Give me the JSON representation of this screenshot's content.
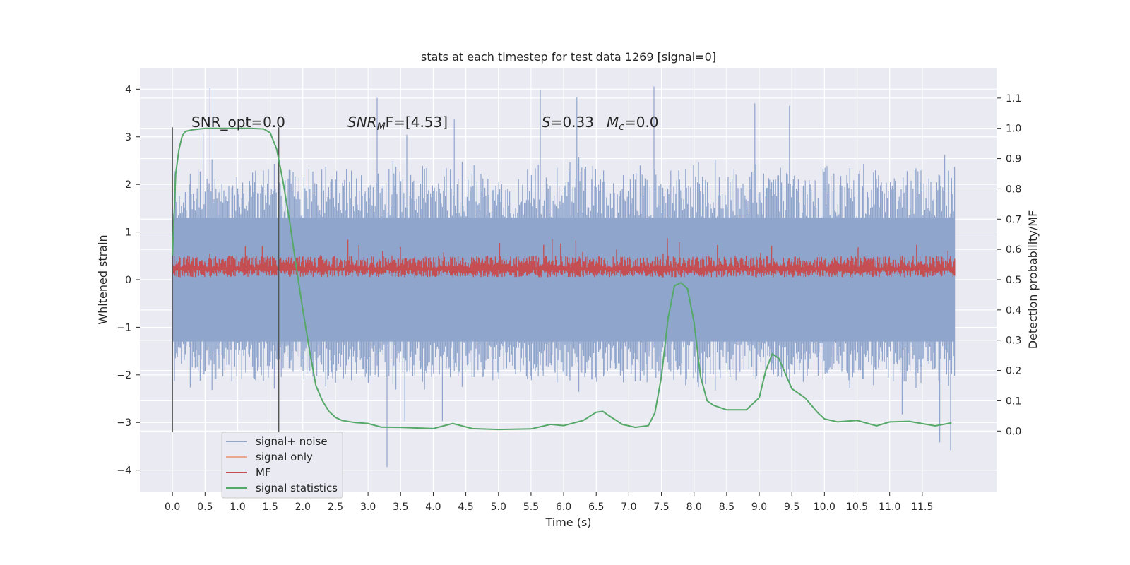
{
  "chart_data": {
    "type": "line",
    "title": "stats at each timestep for test data 1269 [signal=0]",
    "xlabel": "Time (s)",
    "ylabel": "Whitened strain",
    "ylabel_right": "Detection probability/MF",
    "xlim": [
      -0.5,
      12.65
    ],
    "ylim": [
      -4.45,
      4.45
    ],
    "ylim_right": [
      -0.2,
      1.2
    ],
    "x_ticks": [
      "0.0",
      "0.5",
      "1.0",
      "1.5",
      "2.0",
      "2.5",
      "3.0",
      "3.5",
      "4.0",
      "4.5",
      "5.0",
      "5.5",
      "6.0",
      "6.5",
      "7.0",
      "7.5",
      "8.0",
      "8.5",
      "9.0",
      "9.5",
      "10.0",
      "10.5",
      "11.0",
      "11.5"
    ],
    "y_ticks": [
      4,
      3,
      2,
      1,
      0,
      -1,
      -2,
      -3,
      -4
    ],
    "y_tick_labels": [
      "4",
      "3",
      "2",
      "1",
      "0",
      "−1",
      "−2",
      "−3",
      "−4"
    ],
    "y_ticks_right": [
      "1.1",
      "1.0",
      "0.9",
      "0.8",
      "0.7",
      "0.6",
      "0.5",
      "0.4",
      "0.3",
      "0.2",
      "0.1",
      "0.0"
    ],
    "grid": true,
    "legend": {
      "position": "lower-left",
      "entries": [
        {
          "name": "signal+ noise",
          "color": "#8fa5cc"
        },
        {
          "name": "signal only",
          "color": "#e8a890"
        },
        {
          "name": "MF",
          "color": "#c44e52"
        },
        {
          "name": "signal statistics",
          "color": "#55a868"
        }
      ]
    },
    "annotations": {
      "snr_opt": "SNR_opt=0.0",
      "snr_mf_main": "SNR",
      "snr_mf_sub": "M",
      "snr_mf_rest": "F=[4.53]",
      "s_label": "S",
      "s_value": "=0.33",
      "mc_label": "M",
      "mc_sub": "c",
      "mc_value": "=0.0"
    },
    "vertical_markers": [
      0.0,
      1.63
    ],
    "series": [
      {
        "name": "signal+ noise",
        "axis": "left",
        "color": "#8fa5cc",
        "x_range": [
          0.0,
          12.0
        ],
        "envelope": {
          "upper_typical": 2.6,
          "upper_peak": 4.1,
          "lower_typical": -2.4,
          "lower_peak": -4.0
        }
      },
      {
        "name": "signal only",
        "axis": "left",
        "color": "#e8a890",
        "values": []
      },
      {
        "name": "MF",
        "axis": "left",
        "color": "#c44e52",
        "x_range": [
          0.0,
          12.0
        ],
        "envelope": {
          "lower": 0.05,
          "upper_typical": 0.5,
          "upper_peak": 1.0
        }
      },
      {
        "name": "signal statistics",
        "axis": "right",
        "color": "#55a868",
        "x": [
          0.0,
          0.05,
          0.1,
          0.15,
          0.2,
          0.3,
          0.5,
          0.8,
          1.0,
          1.2,
          1.4,
          1.5,
          1.6,
          1.7,
          1.8,
          1.9,
          2.0,
          2.1,
          2.2,
          2.3,
          2.4,
          2.5,
          2.6,
          2.8,
          3.0,
          3.2,
          3.5,
          4.0,
          4.3,
          4.6,
          5.0,
          5.5,
          5.8,
          6.0,
          6.3,
          6.5,
          6.6,
          6.7,
          6.9,
          7.1,
          7.3,
          7.4,
          7.5,
          7.6,
          7.7,
          7.8,
          7.9,
          8.0,
          8.1,
          8.2,
          8.3,
          8.5,
          8.8,
          9.0,
          9.1,
          9.2,
          9.3,
          9.5,
          9.7,
          9.9,
          10.0,
          10.2,
          10.5,
          10.8,
          11.0,
          11.3,
          11.7,
          11.95
        ],
        "values": [
          0.58,
          0.85,
          0.93,
          0.975,
          0.99,
          0.995,
          1.0,
          1.0,
          1.0,
          1.0,
          0.998,
          0.985,
          0.93,
          0.82,
          0.69,
          0.54,
          0.4,
          0.27,
          0.15,
          0.1,
          0.065,
          0.045,
          0.035,
          0.028,
          0.025,
          0.013,
          0.012,
          0.008,
          0.025,
          0.008,
          0.005,
          0.007,
          0.022,
          0.018,
          0.035,
          0.062,
          0.065,
          0.05,
          0.022,
          0.012,
          0.018,
          0.06,
          0.18,
          0.37,
          0.48,
          0.49,
          0.47,
          0.36,
          0.18,
          0.1,
          0.085,
          0.07,
          0.07,
          0.11,
          0.2,
          0.255,
          0.24,
          0.14,
          0.11,
          0.06,
          0.04,
          0.03,
          0.035,
          0.017,
          0.03,
          0.032,
          0.017,
          0.027
        ]
      }
    ]
  }
}
